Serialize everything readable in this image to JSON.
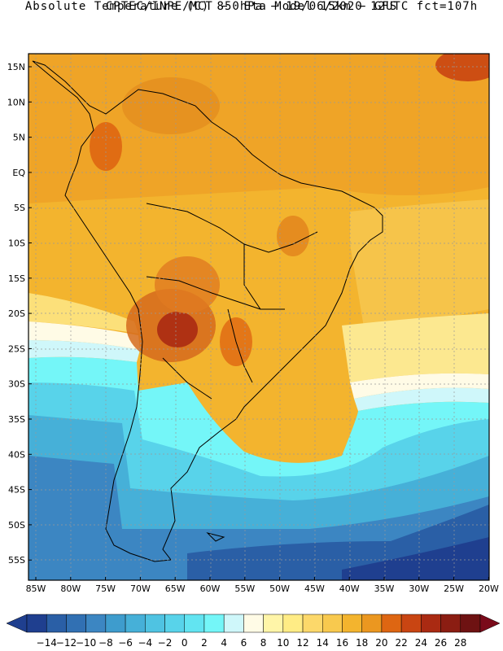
{
  "header": {
    "title_line1": "CPTEC/INPE/MCT −  Eta Model 15km − GFS",
    "title_line2": "Absolute Temperature (C) 850hPa − 19/06/2020 12UTC fct=107h"
  },
  "axes": {
    "lat_labels": [
      "15N",
      "10N",
      "5N",
      "EQ",
      "5S",
      "10S",
      "15S",
      "20S",
      "25S",
      "30S",
      "35S",
      "40S",
      "45S",
      "50S",
      "55S"
    ],
    "lon_labels": [
      "85W",
      "80W",
      "75W",
      "70W",
      "65W",
      "60W",
      "55W",
      "50W",
      "45W",
      "40W",
      "35W",
      "30W",
      "25W",
      "20W"
    ]
  },
  "colorbar": {
    "labels": [
      "-14",
      "-12",
      "-10",
      "-8",
      "-6",
      "-4",
      "-2",
      "0",
      "2",
      "4",
      "6",
      "8",
      "10",
      "12",
      "14",
      "16",
      "18",
      "20",
      "22",
      "24",
      "26",
      "28"
    ],
    "colors": [
      "#1f3f8f",
      "#2a5fa6",
      "#3170b3",
      "#3c86c2",
      "#3e9ccd",
      "#46b0d8",
      "#4fc3e2",
      "#58d3ea",
      "#62e4f1",
      "#74f6f8",
      "#cff7fa",
      "#fffbe6",
      "#fff5a8",
      "#ffec85",
      "#fcd86a",
      "#f8c94e",
      "#f3b42e",
      "#eb9720",
      "#de6612",
      "#c94512",
      "#aa2a12",
      "#8b1d12",
      "#6e1212"
    ]
  },
  "legend_colors": {
    "ocean_warm": "#f2a41f",
    "land_hot": "#d56a1c",
    "cold_ocean": "#4fc3e2",
    "deep_cold": "#2a5fa6"
  }
}
